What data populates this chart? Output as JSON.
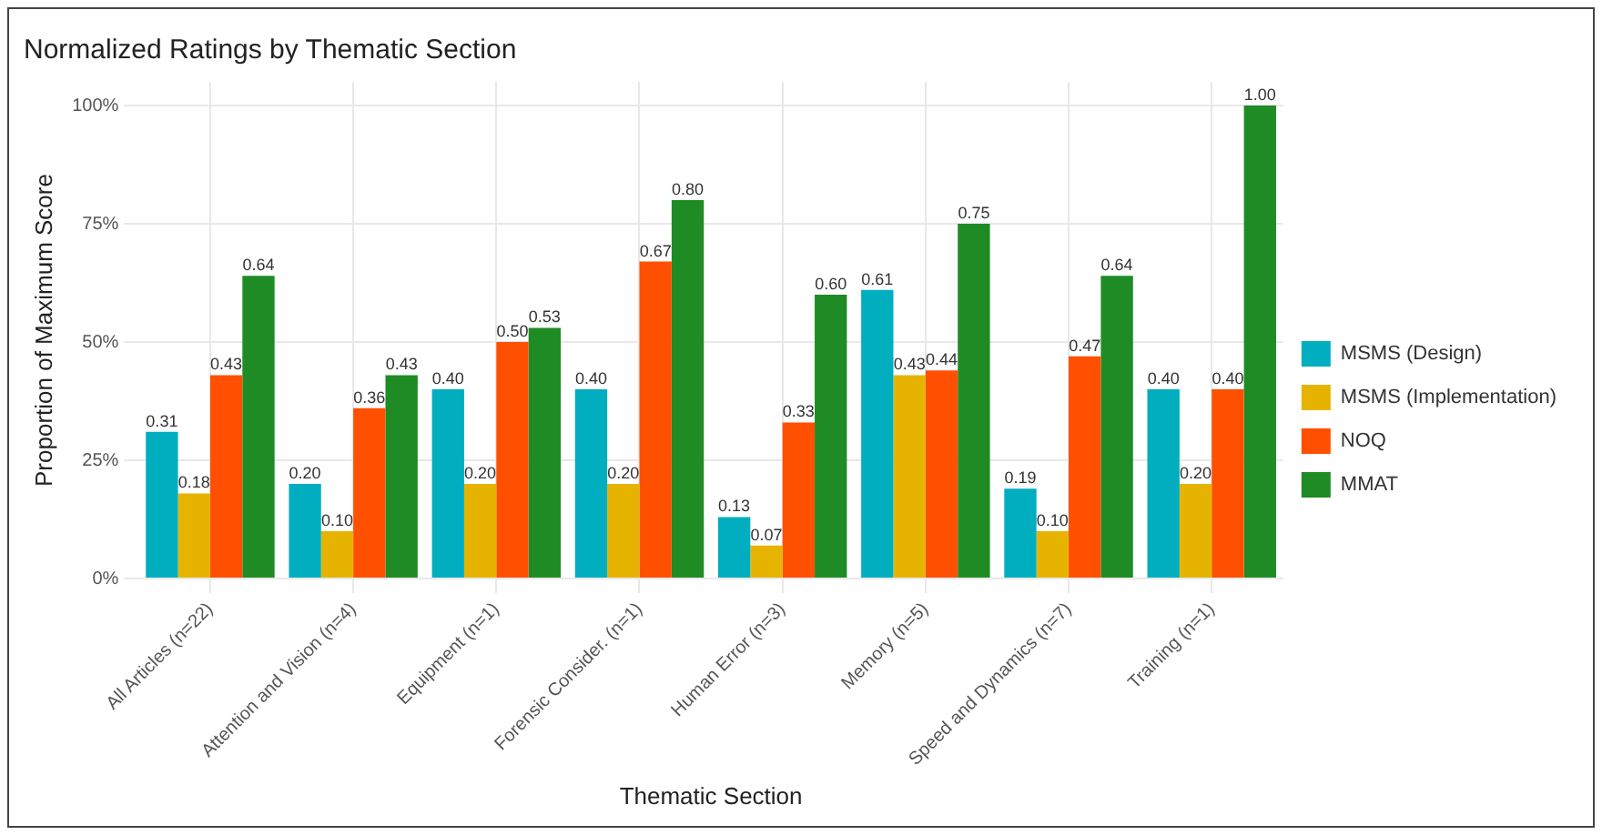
{
  "chart_data": {
    "type": "bar",
    "title": "Normalized Ratings by Thematic Section",
    "xlabel": "Thematic Section",
    "ylabel": "Proportion of Maximum Score",
    "categories": [
      "All Articles (n=22)",
      "Attention and Vision (n=4)",
      "Equipment (n=1)",
      "Forensic Consider. (n=1)",
      "Human Error (n=3)",
      "Memory (n=5)",
      "Speed and Dynamics (n=7)",
      "Training (n=1)"
    ],
    "series": [
      {
        "name": "MSMS (Design)",
        "color": "#00aebf",
        "values": [
          0.31,
          0.2,
          0.4,
          0.4,
          0.13,
          0.61,
          0.19,
          0.4
        ],
        "value_labels": [
          "0.31",
          "0.20",
          "0.40",
          "0.40",
          "0.13",
          "0.61",
          "0.19",
          "0.40"
        ]
      },
      {
        "name": "MSMS (Implementation)",
        "color": "#e6b400",
        "values": [
          0.18,
          0.1,
          0.2,
          0.2,
          0.07,
          0.43,
          0.1,
          0.2
        ],
        "value_labels": [
          "0.18",
          "0.10",
          "0.20",
          "0.20",
          "0.07",
          "0.43",
          "0.10",
          "0.20"
        ]
      },
      {
        "name": "NOQ",
        "color": "#ff4f00",
        "values": [
          0.43,
          0.36,
          0.5,
          0.67,
          0.33,
          0.44,
          0.47,
          0.4
        ],
        "value_labels": [
          "0.43",
          "0.36",
          "0.50",
          "0.67",
          "0.33",
          "0.44",
          "0.47",
          "0.40"
        ]
      },
      {
        "name": "MMAT",
        "color": "#1f8b24",
        "values": [
          0.64,
          0.43,
          0.53,
          0.8,
          0.6,
          0.75,
          0.64,
          1
        ],
        "value_labels": [
          "0.64",
          "0.43",
          "0.53",
          "0.80",
          "0.60",
          "0.75",
          "0.64",
          "1.00"
        ]
      }
    ],
    "ylim": [
      0,
      1.05
    ],
    "yticks": [
      {
        "value": 0,
        "label": "0%"
      },
      {
        "value": 0.25,
        "label": "25%"
      },
      {
        "value": 0.5,
        "label": "50%"
      },
      {
        "value": 0.75,
        "label": "75%"
      },
      {
        "value": 1,
        "label": "100%"
      }
    ],
    "grid": true,
    "legend": "right"
  }
}
